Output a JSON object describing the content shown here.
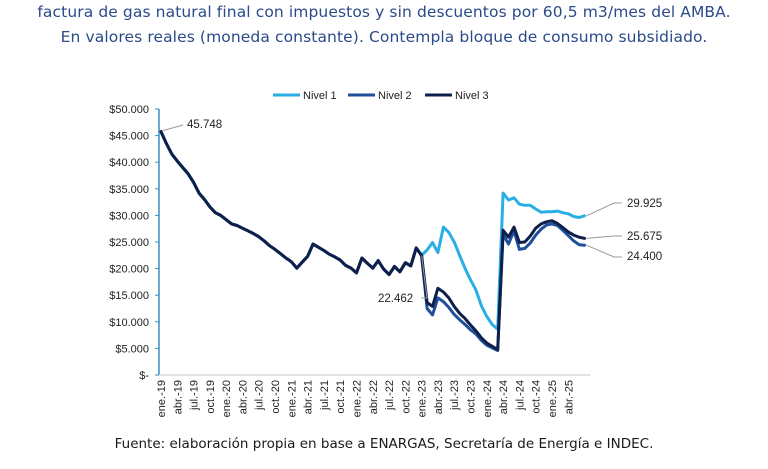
{
  "header": {
    "line1": "factura de gas natural final con impuestos y sin descuentos por 60,5 m3/mes del AMBA.",
    "line2": "En valores reales (moneda constante). Contempla bloque de consumo subsidiado."
  },
  "footer": {
    "source": "Fuente: elaboración propia en base a ENARGAS, Secretaría de Energía e INDEC."
  },
  "chart_data": {
    "type": "line",
    "title": "",
    "xlabel": "",
    "ylabel": "",
    "ylim": [
      0,
      50000
    ],
    "yticks": [
      0,
      5000,
      10000,
      15000,
      20000,
      25000,
      30000,
      35000,
      40000,
      45000,
      50000
    ],
    "ytick_labels": [
      "$-",
      "$5.000",
      "$10.000",
      "$15.000",
      "$20.000",
      "$25.000",
      "$30.000",
      "$35.000",
      "$40.000",
      "$45.000",
      "$50.000"
    ],
    "xtick_labels": [
      "ene.-19",
      "abr.-19",
      "jul.-19",
      "oct.-19",
      "ene.-20",
      "abr.-20",
      "jul.-20",
      "oct.-20",
      "ene.-21",
      "abr.-21",
      "jul.-21",
      "oct.-21",
      "ene.-22",
      "abr.-22",
      "jul.-22",
      "oct.-22",
      "ene.-23",
      "abr.-23",
      "jul.-23",
      "oct.-23",
      "ene.-24",
      "abr.-24",
      "jul.-24",
      "oct.-24",
      "ene.-25",
      "abr.-25"
    ],
    "xtick_every_months": 3,
    "n_months": 79,
    "grid": false,
    "legend": {
      "position": "top-center",
      "entries": [
        "Nivel 1",
        "Nivel 2",
        "Nivel 3"
      ]
    },
    "colors": {
      "Nivel 1": "#29aee6",
      "Nivel 2": "#1f4e9a",
      "Nivel 3": "#0e1f4a",
      "axis": "#3a8fc4",
      "leader": "#9a9a9a"
    },
    "series": [
      {
        "name": "Nivel 1",
        "values": [
          45748,
          43500,
          41500,
          40200,
          39000,
          37800,
          36200,
          34200,
          33000,
          31600,
          30500,
          30000,
          29200,
          28400,
          28100,
          27600,
          27100,
          26600,
          26000,
          25200,
          24300,
          23600,
          22800,
          22000,
          21300,
          20100,
          21200,
          22300,
          24600,
          24000,
          23400,
          22700,
          22200,
          21600,
          20600,
          20100,
          19200,
          22000,
          21000,
          20100,
          21500,
          19900,
          18900,
          20400,
          19400,
          21100,
          20500,
          23900,
          22500,
          23500,
          24900,
          23000,
          27800,
          26800,
          25000,
          22500,
          20000,
          17900,
          16000,
          13000,
          11000,
          9500,
          8600,
          34200,
          32900,
          33300,
          32100,
          31900,
          31900,
          31200,
          30600,
          30700,
          30700,
          30800,
          30500,
          30300,
          29800,
          29600,
          29925
        ]
      },
      {
        "name": "Nivel 2",
        "values": [
          45748,
          43500,
          41500,
          40200,
          39000,
          37800,
          36200,
          34200,
          33000,
          31600,
          30500,
          30000,
          29200,
          28400,
          28100,
          27600,
          27100,
          26600,
          26000,
          25200,
          24300,
          23600,
          22800,
          22000,
          21300,
          20100,
          21200,
          22300,
          24600,
          24000,
          23400,
          22700,
          22200,
          21600,
          20600,
          20100,
          19200,
          22000,
          21000,
          20100,
          21500,
          19900,
          18900,
          20400,
          19400,
          21100,
          20500,
          23900,
          22462,
          12500,
          11300,
          14500,
          13800,
          12700,
          11400,
          10400,
          9500,
          8500,
          7700,
          6500,
          5600,
          5100,
          4600,
          26500,
          24600,
          27100,
          23600,
          23800,
          24800,
          26300,
          27400,
          28200,
          28400,
          28100,
          27200,
          26200,
          25200,
          24500,
          24400
        ]
      },
      {
        "name": "Nivel 3",
        "values": [
          45748,
          43500,
          41500,
          40200,
          39000,
          37800,
          36200,
          34200,
          33000,
          31600,
          30500,
          30000,
          29200,
          28400,
          28100,
          27600,
          27100,
          26600,
          26000,
          25200,
          24300,
          23600,
          22800,
          22000,
          21300,
          20100,
          21200,
          22300,
          24600,
          24000,
          23400,
          22700,
          22200,
          21600,
          20600,
          20100,
          19200,
          22000,
          21000,
          20100,
          21500,
          19900,
          18900,
          20400,
          19400,
          21100,
          20500,
          23900,
          22462,
          13600,
          12900,
          16300,
          15600,
          14500,
          12900,
          11600,
          10600,
          9400,
          8300,
          7000,
          6000,
          5400,
          4800,
          27200,
          25900,
          27800,
          24900,
          25000,
          26100,
          27600,
          28400,
          28800,
          29000,
          28500,
          27700,
          26900,
          26300,
          25900,
          25675
        ]
      }
    ],
    "annotations": [
      {
        "label": "45.748",
        "series": "all",
        "month_index": 0,
        "value": 45748
      },
      {
        "label": "22.462",
        "series": "Nivel 2 / Nivel 3",
        "month_index": 48,
        "value": 22462
      },
      {
        "label": "29.925",
        "series": "Nivel 1",
        "month_index": 78,
        "value": 29925
      },
      {
        "label": "25.675",
        "series": "Nivel 3",
        "month_index": 78,
        "value": 25675
      },
      {
        "label": "24.400",
        "series": "Nivel 2",
        "month_index": 78,
        "value": 24400
      }
    ]
  }
}
